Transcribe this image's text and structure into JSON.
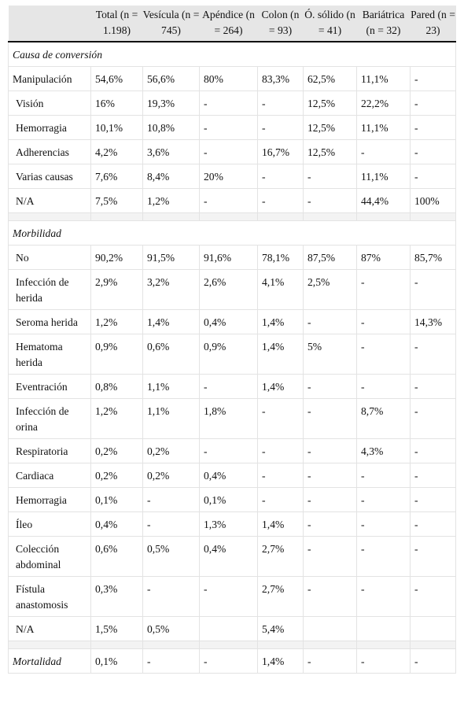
{
  "table": {
    "headers": [
      "",
      "Total (n = 1.198)",
      "Vesícula (n = 745)",
      "Apéndice (n = 264)",
      "Colon (n = 93)",
      "Ó. sólido (n = 41)",
      "Bariátrica (n = 32)",
      "Pared (n = 23)"
    ],
    "sections": [
      {
        "title": "Causa de conversión",
        "rows": [
          {
            "label": "Manipulación",
            "indent": false,
            "values": [
              "54,6%",
              "56,6%",
              "80%",
              "83,3%",
              "62,5%",
              "11,1%",
              "-"
            ]
          },
          {
            "label": "Visión",
            "indent": true,
            "values": [
              "16%",
              "19,3%",
              "-",
              "-",
              "12,5%",
              "22,2%",
              "-"
            ]
          },
          {
            "label": "Hemorragia",
            "indent": true,
            "values": [
              "10,1%",
              "10,8%",
              "-",
              "-",
              "12,5%",
              "11,1%",
              "-"
            ]
          },
          {
            "label": "Adherencias",
            "indent": true,
            "values": [
              "4,2%",
              "3,6%",
              "-",
              "16,7%",
              "12,5%",
              "-",
              "-"
            ]
          },
          {
            "label": "Varias causas",
            "indent": true,
            "values": [
              "7,6%",
              "8,4%",
              "20%",
              "-",
              "-",
              "11,1%",
              "-"
            ]
          },
          {
            "label": "N/A",
            "indent": true,
            "values": [
              "7,5%",
              "1,2%",
              "-",
              "-",
              "-",
              "44,4%",
              "100%"
            ]
          }
        ]
      },
      {
        "title": "Morbilidad",
        "rows": [
          {
            "label": "No",
            "indent": true,
            "values": [
              "90,2%",
              "91,5%",
              "91,6%",
              "78,1%",
              "87,5%",
              "87%",
              "85,7%"
            ]
          },
          {
            "label": "Infección de herida",
            "indent": true,
            "values": [
              "2,9%",
              "3,2%",
              "2,6%",
              "4,1%",
              "2,5%",
              "-",
              "-"
            ]
          },
          {
            "label": "Seroma herida",
            "indent": true,
            "values": [
              "1,2%",
              "1,4%",
              "0,4%",
              "1,4%",
              "-",
              "-",
              "14,3%"
            ]
          },
          {
            "label": "Hematoma herida",
            "indent": true,
            "values": [
              "0,9%",
              "0,6%",
              "0,9%",
              "1,4%",
              "5%",
              "-",
              "-"
            ]
          },
          {
            "label": "Eventración",
            "indent": true,
            "values": [
              "0,8%",
              "1,1%",
              "-",
              "1,4%",
              "-",
              "-",
              "-"
            ]
          },
          {
            "label": "Infección de orina",
            "indent": true,
            "values": [
              "1,2%",
              "1,1%",
              "1,8%",
              "-",
              "-",
              "8,7%",
              "-"
            ]
          },
          {
            "label": "Respiratoria",
            "indent": true,
            "values": [
              "0,2%",
              "0,2%",
              "-",
              "-",
              "-",
              "4,3%",
              "-"
            ]
          },
          {
            "label": "Cardiaca",
            "indent": true,
            "values": [
              "0,2%",
              "0,2%",
              "0,4%",
              "-",
              "-",
              "-",
              "-"
            ]
          },
          {
            "label": "Hemorragia",
            "indent": true,
            "values": [
              "0,1%",
              "-",
              "0,1%",
              "-",
              "-",
              "-",
              "-"
            ]
          },
          {
            "label": "Íleo",
            "indent": true,
            "values": [
              "0,4%",
              "-",
              "1,3%",
              "1,4%",
              "-",
              "-",
              "-"
            ]
          },
          {
            "label": "Colección abdominal",
            "indent": true,
            "values": [
              "0,6%",
              "0,5%",
              "0,4%",
              "2,7%",
              "-",
              "-",
              "-"
            ]
          },
          {
            "label": "Fístula anastomosis",
            "indent": true,
            "values": [
              "0,3%",
              "-",
              "-",
              "2,7%",
              "-",
              "-",
              "-"
            ]
          },
          {
            "label": "N/A",
            "indent": true,
            "values": [
              "1,5%",
              "0,5%",
              "",
              "5,4%",
              "",
              "",
              ""
            ]
          }
        ]
      }
    ],
    "footer_row": {
      "label": "Mortalidad",
      "values": [
        "0,1%",
        "-",
        "-",
        "1,4%",
        "-",
        "-",
        "-"
      ]
    }
  }
}
